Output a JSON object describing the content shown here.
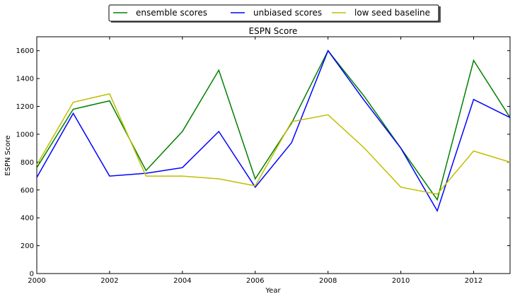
{
  "chart_data": {
    "type": "line",
    "title": "ESPN Score",
    "xlabel": "Year",
    "ylabel": "ESPN Score",
    "xlim": [
      2000,
      2013
    ],
    "ylim": [
      0,
      1700
    ],
    "grid": false,
    "legend_position": "top-center, outside plot",
    "x": [
      2000,
      2001,
      2002,
      2003,
      2004,
      2005,
      2006,
      2007,
      2008,
      2009,
      2010,
      2011,
      2012,
      2013
    ],
    "x_ticks": [
      "2000",
      "2002",
      "2004",
      "2006",
      "2008",
      "2010",
      "2012"
    ],
    "y_ticks": [
      "0",
      "200",
      "400",
      "600",
      "800",
      "1000",
      "1200",
      "1400",
      "1600"
    ],
    "series": [
      {
        "name": "ensemble scores",
        "color": "#008000",
        "values": [
          760,
          1180,
          1240,
          740,
          1020,
          1460,
          680,
          1080,
          1600,
          1270,
          900,
          530,
          1530,
          1120
        ]
      },
      {
        "name": "unbiased scores",
        "color": "#0000ff",
        "values": [
          690,
          1150,
          700,
          720,
          760,
          1020,
          620,
          940,
          1600,
          1240,
          900,
          450,
          1250,
          1120
        ]
      },
      {
        "name": "low seed baseline",
        "color": "#bfbf00",
        "values": [
          780,
          1230,
          1290,
          700,
          700,
          680,
          630,
          1090,
          1140,
          900,
          620,
          570,
          880,
          800
        ]
      }
    ]
  }
}
